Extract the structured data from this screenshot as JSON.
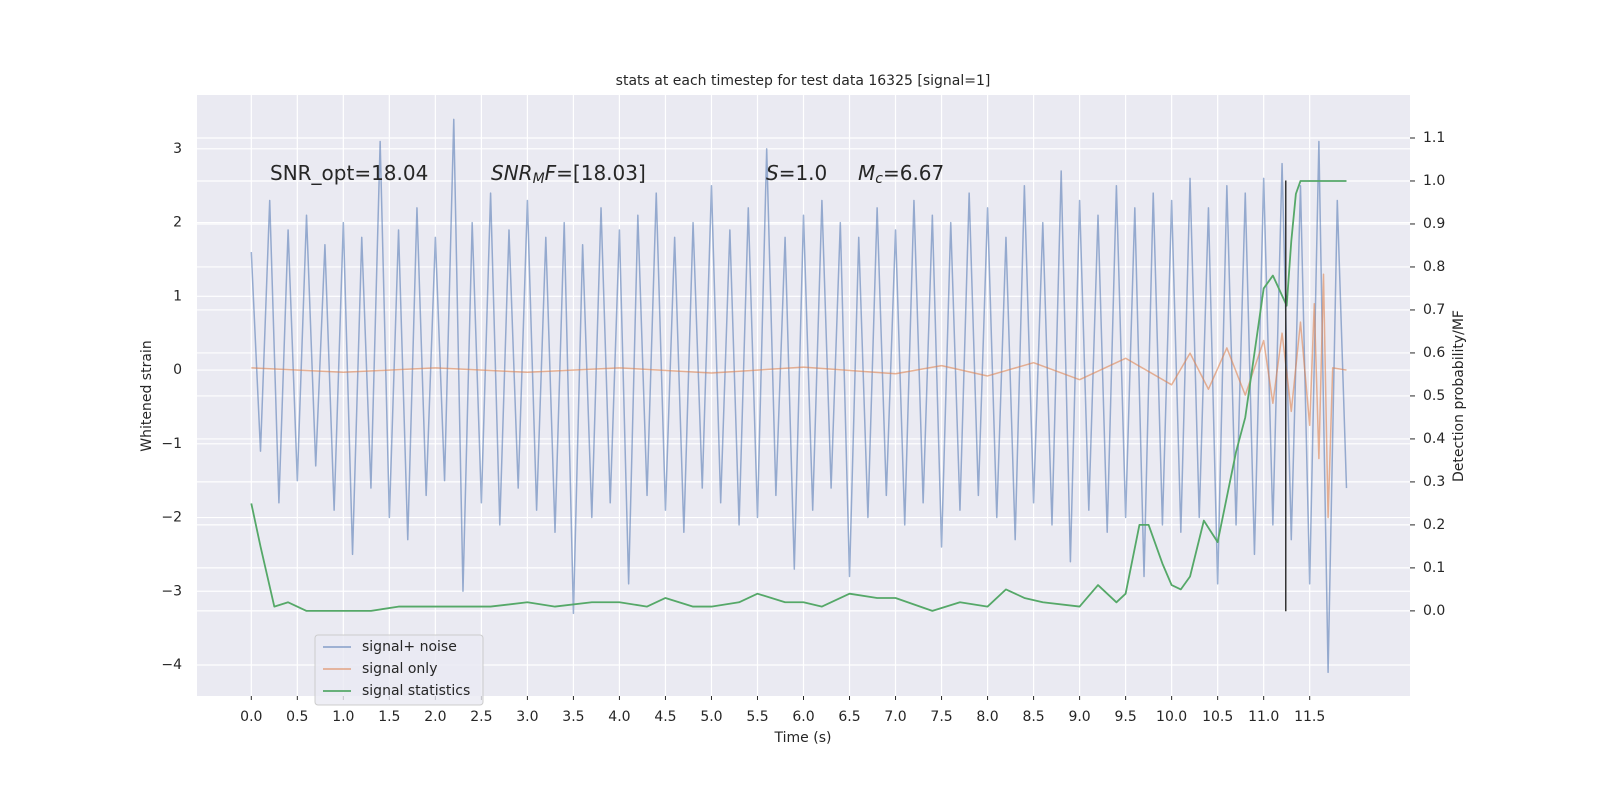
{
  "chart_data": {
    "type": "line",
    "title": "stats at each timestep for test data 16325 [signal=1]",
    "xlabel": "Time (s)",
    "ylabel": "Whitened strain",
    "y2label": "Detection probability/MF",
    "annotations": [
      [
        "SNR_opt=18.04"
      ],
      [
        "SNR",
        "M",
        "F",
        "=[18.03]"
      ],
      [
        "S",
        "=1.0"
      ],
      [
        "M",
        "c",
        "=6.67"
      ]
    ],
    "xlim": [
      -0.59,
      12.59
    ],
    "ylim": [
      -4.42,
      3.73
    ],
    "y2lim": [
      -0.198,
      1.2
    ],
    "xticks": [
      {
        "value": 0,
        "label": "0.0"
      },
      {
        "value": 0.5,
        "label": "0.5"
      },
      {
        "value": 1,
        "label": "1.0"
      },
      {
        "value": 1.5,
        "label": "1.5"
      },
      {
        "value": 2,
        "label": "2.0"
      },
      {
        "value": 2.5,
        "label": "2.5"
      },
      {
        "value": 3,
        "label": "3.0"
      },
      {
        "value": 3.5,
        "label": "3.5"
      },
      {
        "value": 4,
        "label": "4.0"
      },
      {
        "value": 4.5,
        "label": "4.5"
      },
      {
        "value": 5,
        "label": "5.0"
      },
      {
        "value": 5.5,
        "label": "5.5"
      },
      {
        "value": 6,
        "label": "6.0"
      },
      {
        "value": 6.5,
        "label": "6.5"
      },
      {
        "value": 7,
        "label": "7.0"
      },
      {
        "value": 7.5,
        "label": "7.5"
      },
      {
        "value": 8,
        "label": "8.0"
      },
      {
        "value": 8.5,
        "label": "8.5"
      },
      {
        "value": 9,
        "label": "9.0"
      },
      {
        "value": 9.5,
        "label": "9.5"
      },
      {
        "value": 10,
        "label": "10.0"
      },
      {
        "value": 10.5,
        "label": "10.5"
      },
      {
        "value": 11,
        "label": "11.0"
      },
      {
        "value": 11.5,
        "label": "11.5"
      }
    ],
    "yticks": [
      {
        "value": -4,
        "label": "−4"
      },
      {
        "value": -3,
        "label": "−3"
      },
      {
        "value": -2,
        "label": "−2"
      },
      {
        "value": -1,
        "label": "−1"
      },
      0,
      1,
      2,
      3
    ],
    "y2ticks": [
      {
        "value": 0,
        "label": "0.0"
      },
      {
        "value": 0.1,
        "label": "0.1"
      },
      {
        "value": 0.2,
        "label": "0.2"
      },
      {
        "value": 0.3,
        "label": "0.3"
      },
      {
        "value": 0.4,
        "label": "0.4"
      },
      {
        "value": 0.5,
        "label": "0.5"
      },
      {
        "value": 0.6,
        "label": "0.6"
      },
      {
        "value": 0.7,
        "label": "0.7"
      },
      {
        "value": 0.8,
        "label": "0.8"
      },
      {
        "value": 0.9,
        "label": "0.9"
      },
      {
        "value": 1,
        "label": "1.0"
      },
      {
        "value": 1.1,
        "label": "1.1"
      }
    ],
    "grid": true,
    "legend": "lower left",
    "series": [
      {
        "name": "signal+ noise",
        "color": "#4c72b0",
        "opacity": 0.55,
        "x": [
          0.0,
          0.1,
          0.2,
          0.3,
          0.4,
          0.5,
          0.6,
          0.7,
          0.8,
          0.9,
          1.0,
          1.1,
          1.2,
          1.3,
          1.4,
          1.5,
          1.6,
          1.7,
          1.8,
          1.9,
          2.0,
          2.1,
          2.2,
          2.3,
          2.4,
          2.5,
          2.6,
          2.7,
          2.8,
          2.9,
          3.0,
          3.1,
          3.2,
          3.3,
          3.4,
          3.5,
          3.6,
          3.7,
          3.8,
          3.9,
          4.0,
          4.1,
          4.2,
          4.3,
          4.4,
          4.5,
          4.6,
          4.7,
          4.8,
          4.9,
          5.0,
          5.1,
          5.2,
          5.3,
          5.4,
          5.5,
          5.6,
          5.7,
          5.8,
          5.9,
          6.0,
          6.1,
          6.2,
          6.3,
          6.4,
          6.5,
          6.6,
          6.7,
          6.8,
          6.9,
          7.0,
          7.1,
          7.2,
          7.3,
          7.4,
          7.5,
          7.6,
          7.7,
          7.8,
          7.9,
          8.0,
          8.1,
          8.2,
          8.3,
          8.4,
          8.5,
          8.6,
          8.7,
          8.8,
          8.9,
          9.0,
          9.1,
          9.2,
          9.3,
          9.4,
          9.5,
          9.6,
          9.7,
          9.8,
          9.9,
          10.0,
          10.1,
          10.2,
          10.3,
          10.4,
          10.5,
          10.6,
          10.7,
          10.8,
          10.9,
          11.0,
          11.1,
          11.2,
          11.3,
          11.4,
          11.5,
          11.6,
          11.7,
          11.8,
          11.9
        ],
        "values": [
          1.6,
          -1.1,
          2.3,
          -1.8,
          1.9,
          -1.5,
          2.1,
          -1.3,
          1.7,
          -1.9,
          2.0,
          -2.5,
          1.8,
          -1.6,
          3.1,
          -2.0,
          1.9,
          -2.3,
          2.2,
          -1.7,
          1.8,
          -1.5,
          3.4,
          -3.0,
          2.0,
          -1.8,
          2.4,
          -2.1,
          1.9,
          -1.6,
          2.3,
          -1.9,
          1.8,
          -2.2,
          2.0,
          -3.3,
          1.7,
          -2.0,
          2.2,
          -1.8,
          1.9,
          -2.9,
          2.1,
          -1.7,
          2.4,
          -1.9,
          1.8,
          -2.2,
          2.0,
          -1.6,
          2.5,
          -1.8,
          1.9,
          -2.1,
          2.2,
          -2.0,
          3.0,
          -1.7,
          1.8,
          -2.7,
          2.1,
          -1.9,
          2.3,
          -1.6,
          2.0,
          -2.8,
          1.8,
          -2.0,
          2.2,
          -1.7,
          1.9,
          -2.1,
          2.3,
          -1.8,
          2.1,
          -2.4,
          2.0,
          -1.9,
          2.4,
          -1.7,
          2.2,
          -2.0,
          1.8,
          -2.3,
          2.5,
          -1.8,
          2.0,
          -2.1,
          2.7,
          -2.6,
          2.3,
          -1.9,
          2.1,
          -2.2,
          2.5,
          -2.0,
          2.2,
          -2.8,
          2.4,
          -2.1,
          2.3,
          -2.2,
          2.6,
          -2.0,
          2.2,
          -2.9,
          2.5,
          -2.1,
          2.4,
          -2.5,
          2.6,
          -2.1,
          2.8,
          -2.3,
          2.5,
          -2.9,
          3.1,
          -4.1,
          2.3,
          -1.6
        ]
      },
      {
        "name": "signal only",
        "color": "#dd8452",
        "opacity": 0.6,
        "x": [
          0,
          1,
          2,
          3,
          4,
          5,
          6,
          7,
          7.5,
          8,
          8.5,
          9,
          9.5,
          10,
          10.2,
          10.4,
          10.6,
          10.8,
          11,
          11.1,
          11.2,
          11.3,
          11.4,
          11.5,
          11.55,
          11.6,
          11.65,
          11.7,
          11.75,
          11.9
        ],
        "values": [
          0.03,
          -0.03,
          0.03,
          -0.03,
          0.03,
          -0.04,
          0.04,
          -0.05,
          0.06,
          -0.08,
          0.1,
          -0.13,
          0.16,
          -0.2,
          0.23,
          -0.26,
          0.3,
          -0.34,
          0.4,
          -0.45,
          0.5,
          -0.56,
          0.65,
          -0.75,
          0.9,
          -1.2,
          1.3,
          -2.0,
          0.03,
          0.0
        ]
      },
      {
        "name": "signal statistics",
        "color": "#55a868",
        "opacity": 1,
        "axis": "y2",
        "x": [
          0,
          0.1,
          0.25,
          0.4,
          0.6,
          0.8,
          1.0,
          1.3,
          1.6,
          2.0,
          2.3,
          2.6,
          3.0,
          3.3,
          3.7,
          4.0,
          4.3,
          4.5,
          4.8,
          5.0,
          5.3,
          5.5,
          5.8,
          6.0,
          6.2,
          6.5,
          6.8,
          7.0,
          7.4,
          7.7,
          8.0,
          8.2,
          8.4,
          8.6,
          9.0,
          9.2,
          9.4,
          9.5,
          9.65,
          9.75,
          9.9,
          10.0,
          10.1,
          10.2,
          10.35,
          10.5,
          10.7,
          10.8,
          10.9,
          11.0,
          11.1,
          11.25,
          11.3,
          11.35,
          11.4,
          11.9
        ],
        "values": [
          0.25,
          0.15,
          0.01,
          0.02,
          0.0,
          0.0,
          0.0,
          0.0,
          0.01,
          0.01,
          0.01,
          0.01,
          0.02,
          0.01,
          0.02,
          0.02,
          0.01,
          0.03,
          0.01,
          0.01,
          0.02,
          0.04,
          0.02,
          0.02,
          0.01,
          0.04,
          0.03,
          0.03,
          0.0,
          0.02,
          0.01,
          0.05,
          0.03,
          0.02,
          0.01,
          0.06,
          0.02,
          0.04,
          0.2,
          0.2,
          0.11,
          0.06,
          0.05,
          0.08,
          0.21,
          0.16,
          0.37,
          0.45,
          0.6,
          0.75,
          0.78,
          0.71,
          0.86,
          0.97,
          1.0,
          1.0
        ]
      }
    ],
    "vline": {
      "x": 11.24,
      "ymin": -3.27,
      "ymax": 2.57,
      "color": "#333333"
    }
  }
}
